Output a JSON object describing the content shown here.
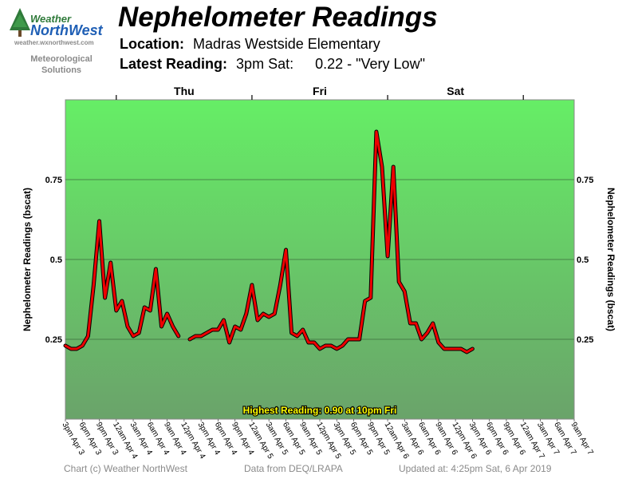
{
  "logo": {
    "line1": "Weather",
    "line2": "NorthWest",
    "url": "weather.wxnorthwest.com",
    "tagline1": "Meteorological",
    "tagline2": "Solutions"
  },
  "header": {
    "title": "Nephelometer Readings",
    "location_label": "Location:",
    "location_value": "Madras Westside Elementary",
    "latest_label": "Latest Reading:",
    "latest_time": "3pm Sat:",
    "latest_value": "0.22 - \"Very Low\""
  },
  "chart_data": {
    "type": "line",
    "ylabel": "Nephelometer Readings (bscat)",
    "ylim": [
      0,
      1.0
    ],
    "yticks": [
      "0.25",
      "0.5",
      "0.75"
    ],
    "ytick_values": [
      0.25,
      0.5,
      0.75
    ],
    "day_labels": [
      "Thu",
      "Fri",
      "Sat"
    ],
    "x_ticks": [
      "3pm Apr 3",
      "6pm Apr 3",
      "9pm Apr 3",
      "12am Apr 4",
      "3am Apr 4",
      "6am Apr 4",
      "9am Apr 4",
      "12pm Apr 4",
      "3pm Apr 4",
      "6pm Apr 4",
      "9pm Apr 4",
      "12am Apr 5",
      "3am Apr 5",
      "6am Apr 5",
      "9am Apr 5",
      "12pm Apr 5",
      "3pm Apr 5",
      "6pm Apr 5",
      "9pm Apr 5",
      "12am Apr 6",
      "3am Apr 6",
      "6am Apr 6",
      "9am Apr 6",
      "12pm Apr 6",
      "3pm Apr 6",
      "6pm Apr 6",
      "9pm Apr 6",
      "12am Apr 7",
      "3am Apr 7",
      "6am Apr 7",
      "9am Apr 7"
    ],
    "x_start_hour": 15,
    "x_end_hour": 105,
    "annotation": "Highest Reading: 0.90 at 10pm Fri",
    "series": [
      {
        "values": [
          [
            15,
            0.23
          ],
          [
            16,
            0.22
          ],
          [
            17,
            0.22
          ],
          [
            18,
            0.23
          ],
          [
            19,
            0.26
          ],
          [
            20,
            0.42
          ],
          [
            21,
            0.62
          ],
          [
            22,
            0.38
          ],
          [
            23,
            0.49
          ],
          [
            24,
            0.34
          ],
          [
            25,
            0.37
          ],
          [
            26,
            0.29
          ],
          [
            27,
            0.26
          ],
          [
            28,
            0.27
          ],
          [
            29,
            0.35
          ],
          [
            30,
            0.34
          ],
          [
            31,
            0.47
          ],
          [
            32,
            0.29
          ],
          [
            33,
            0.33
          ],
          [
            34,
            0.29
          ],
          [
            35,
            0.26
          ]
        ]
      },
      {
        "values": [
          [
            37,
            0.25
          ],
          [
            38,
            0.26
          ],
          [
            39,
            0.26
          ],
          [
            40,
            0.27
          ],
          [
            41,
            0.28
          ],
          [
            42,
            0.28
          ],
          [
            43,
            0.31
          ],
          [
            44,
            0.24
          ],
          [
            45,
            0.29
          ],
          [
            46,
            0.28
          ],
          [
            47,
            0.33
          ],
          [
            48,
            0.42
          ],
          [
            49,
            0.31
          ],
          [
            50,
            0.33
          ],
          [
            51,
            0.32
          ],
          [
            52,
            0.33
          ],
          [
            53,
            0.42
          ],
          [
            54,
            0.53
          ],
          [
            55,
            0.27
          ],
          [
            56,
            0.26
          ],
          [
            57,
            0.28
          ],
          [
            58,
            0.24
          ],
          [
            59,
            0.24
          ],
          [
            60,
            0.22
          ],
          [
            61,
            0.23
          ],
          [
            62,
            0.23
          ],
          [
            63,
            0.22
          ],
          [
            64,
            0.23
          ],
          [
            65,
            0.25
          ],
          [
            66,
            0.25
          ],
          [
            67,
            0.25
          ],
          [
            68,
            0.37
          ],
          [
            69,
            0.38
          ],
          [
            70,
            0.9
          ],
          [
            71,
            0.79
          ],
          [
            72,
            0.51
          ],
          [
            73,
            0.79
          ],
          [
            74,
            0.43
          ],
          [
            75,
            0.4
          ],
          [
            76,
            0.3
          ],
          [
            77,
            0.3
          ],
          [
            78,
            0.25
          ],
          [
            79,
            0.27
          ],
          [
            80,
            0.3
          ],
          [
            81,
            0.24
          ],
          [
            82,
            0.22
          ],
          [
            83,
            0.22
          ],
          [
            84,
            0.22
          ],
          [
            85,
            0.22
          ],
          [
            86,
            0.21
          ],
          [
            87,
            0.22
          ]
        ]
      }
    ]
  },
  "footer": {
    "copyright": "Chart (c) Weather NorthWest",
    "source": "Data from DEQ/LRAPA",
    "updated": "Updated at: 4:25pm Sat, 6 Apr 2019"
  }
}
